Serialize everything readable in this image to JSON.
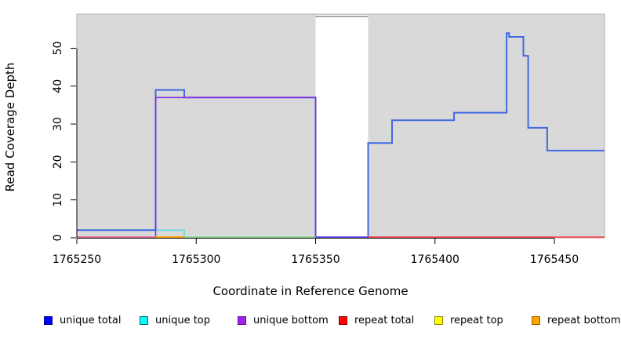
{
  "figure": {
    "background": "#ffffff",
    "xlabel": "Coordinate in Reference Genome",
    "ylabel": "Read Coverage Depth"
  },
  "chart_data": {
    "type": "line",
    "subtype": "step-coverage",
    "title": "",
    "xlabel": "Coordinate in Reference Genome",
    "ylabel": "Read Coverage Depth",
    "xlim": [
      1765250,
      1765471
    ],
    "ylim": [
      0,
      59
    ],
    "x_ticks": [
      1765250,
      1765300,
      1765350,
      1765400,
      1765450
    ],
    "y_ticks": [
      0,
      10,
      20,
      30,
      40,
      50
    ],
    "grid": false,
    "plot_background": "#d9d9d9",
    "plot_border": "#b3b3b3",
    "masked_region": {
      "from": 1765350,
      "to": 1765372,
      "color": "#ffffff",
      "top_border": "#8a8a8a"
    },
    "series": [
      {
        "name": "unique top",
        "color": "#5FDCDC",
        "width": 1.6,
        "points": [
          [
            1765250,
            2
          ],
          [
            1765295,
            2
          ],
          [
            1765295,
            0
          ]
        ]
      },
      {
        "name": "unique total",
        "color": "#4169E1",
        "width": 2,
        "points": [
          [
            1765250,
            2
          ],
          [
            1765283,
            2
          ],
          [
            1765283,
            39
          ],
          [
            1765295,
            39
          ],
          [
            1765295,
            37
          ],
          [
            1765350,
            37
          ],
          [
            1765350,
            0
          ],
          [
            1765372,
            0
          ],
          [
            1765372,
            25
          ],
          [
            1765382,
            25
          ],
          [
            1765382,
            31
          ],
          [
            1765408,
            31
          ],
          [
            1765408,
            33
          ],
          [
            1765430,
            33
          ],
          [
            1765430,
            54
          ],
          [
            1765431,
            54
          ],
          [
            1765431,
            53
          ],
          [
            1765437,
            53
          ],
          [
            1765437,
            48
          ],
          [
            1765439,
            48
          ],
          [
            1765439,
            29
          ],
          [
            1765447,
            29
          ],
          [
            1765447,
            23
          ],
          [
            1765471,
            23
          ]
        ]
      },
      {
        "name": "unique bottom",
        "color": "#8A2BE2",
        "width": 1.6,
        "points": [
          [
            1765283,
            0
          ],
          [
            1765283,
            37
          ],
          [
            1765350,
            37
          ],
          [
            1765350,
            0
          ]
        ]
      }
    ],
    "baseline_segments": [
      {
        "from": 1765250,
        "to": 1765283,
        "color": "#E2679B"
      },
      {
        "from": 1765283,
        "to": 1765295,
        "color": "#FFA500"
      },
      {
        "from": 1765295,
        "to": 1765350,
        "color": "#8FD98F"
      },
      {
        "from": 1765350,
        "to": 1765372,
        "color": "#5A4AE8"
      },
      {
        "from": 1765372,
        "to": 1765471,
        "color": "#ED4C5C"
      }
    ],
    "legend_position": "bottom",
    "legend": [
      {
        "label": "unique total",
        "fill": "#0000FF",
        "border": "#00008B"
      },
      {
        "label": "unique top",
        "fill": "#00FFFF",
        "border": "#006A6A"
      },
      {
        "label": "unique bottom",
        "fill": "#A020F0",
        "border": "#5A1289"
      },
      {
        "label": "repeat total",
        "fill": "#FF0000",
        "border": "#8B0000"
      },
      {
        "label": "repeat top",
        "fill": "#FFFF00",
        "border": "#8A8A00"
      },
      {
        "label": "repeat bottom",
        "fill": "#FFA500",
        "border": "#9A5F00"
      }
    ]
  }
}
